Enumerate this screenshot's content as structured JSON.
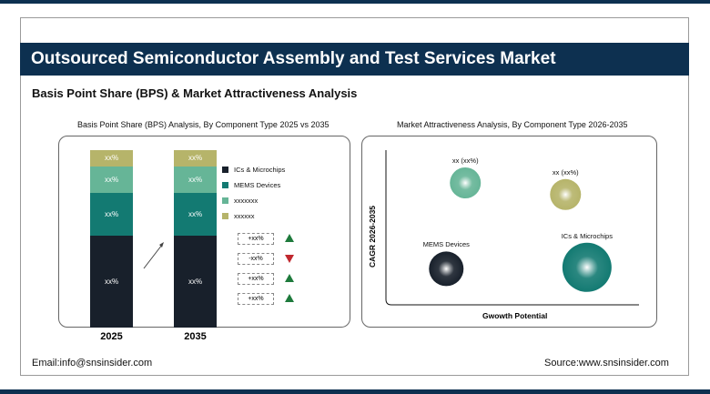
{
  "header": {
    "title": "Outsourced Semiconductor Assembly and Test Services Market",
    "subtitle": "Basis Point Share (BPS) & Market Attractiveness Analysis"
  },
  "footer": {
    "email": "Email:info@snsinsider.com",
    "source": "Source:www.snsinsider.com"
  },
  "colors": {
    "navy": "#0d3050",
    "dark": "#18202b",
    "teal": "#137a72",
    "light_green": "#66b597",
    "olive": "#b6b46a",
    "up": "#1e7a3c",
    "down": "#c0282e"
  },
  "chart_data": [
    {
      "type": "bar",
      "stacked": true,
      "title": "Basis Point Share (BPS) Analysis, By Component Type 2025 vs 2035",
      "categories": [
        "2025",
        "2035"
      ],
      "series": [
        {
          "name": "ICs & Microchips",
          "values": [
            52,
            52
          ],
          "labels": [
            "xx%",
            "xx%"
          ],
          "color": "#18202b"
        },
        {
          "name": "MEMS Devices",
          "values": [
            24,
            24
          ],
          "labels": [
            "xx%",
            "xx%"
          ],
          "color": "#137a72"
        },
        {
          "name": "xxxxxxx",
          "values": [
            15,
            15
          ],
          "labels": [
            "xx%",
            "xx%"
          ],
          "color": "#66b597"
        },
        {
          "name": "xxxxxx",
          "values": [
            9,
            9
          ],
          "labels": [
            "xx%",
            "xx%"
          ],
          "color": "#b6b46a"
        }
      ],
      "changes": [
        {
          "text": "+xx%",
          "dir": "up"
        },
        {
          "text": "-xx%",
          "dir": "down"
        },
        {
          "text": "+xx%",
          "dir": "up"
        },
        {
          "text": "+xx%",
          "dir": "up"
        }
      ],
      "legend": "right"
    },
    {
      "type": "scatter",
      "bubble": true,
      "title": "Market Attractiveness Analysis, By Component Type 2026-2035",
      "xlabel": "Gwowth Potential",
      "ylabel": "CAGR 2026-2035",
      "xlim": [
        0,
        100
      ],
      "ylim": [
        0,
        100
      ],
      "points": [
        {
          "label": "xx (xx%)",
          "x": 31,
          "y": 80,
          "size": 17,
          "color": "#66b597"
        },
        {
          "label": "xx (xx%)",
          "x": 73,
          "y": 72,
          "size": 17,
          "color": "#b6b46a"
        },
        {
          "label": "MEMS Devices",
          "x": 23,
          "y": 21,
          "size": 19,
          "color": "#18202b"
        },
        {
          "label": "ICs & Microchips",
          "x": 82,
          "y": 22,
          "size": 27,
          "color": "#137a72"
        }
      ]
    }
  ]
}
